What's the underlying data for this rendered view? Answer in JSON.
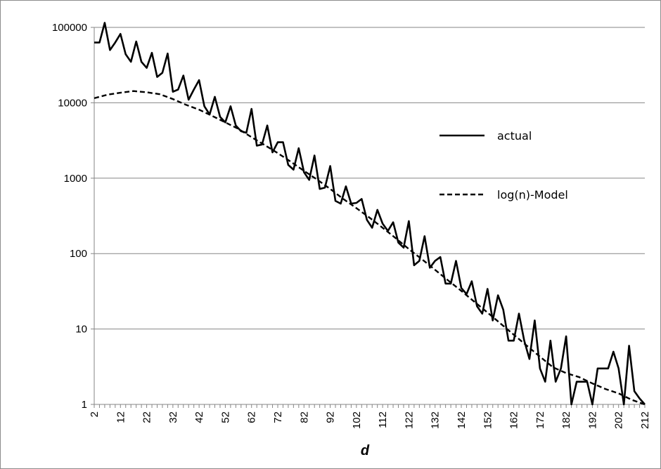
{
  "chart_data": {
    "type": "line",
    "title": "",
    "xlabel": "d",
    "ylabel": "",
    "y_scale": "log",
    "ylim": [
      1,
      100000
    ],
    "xlim": [
      2,
      212
    ],
    "grid": "horizontal major gridlines",
    "legend_position": "right",
    "y_ticks": [
      {
        "value": 1,
        "label": "1"
      },
      {
        "value": 10,
        "label": "10"
      },
      {
        "value": 100,
        "label": "100"
      },
      {
        "value": 1000,
        "label": "1000"
      },
      {
        "value": 10000,
        "label": "10000"
      },
      {
        "value": 100000,
        "label": "100000"
      }
    ],
    "x_ticks": [
      {
        "value": 2,
        "label": "2"
      },
      {
        "value": 12,
        "label": "12"
      },
      {
        "value": 22,
        "label": "22"
      },
      {
        "value": 32,
        "label": "32"
      },
      {
        "value": 42,
        "label": "42"
      },
      {
        "value": 52,
        "label": "52"
      },
      {
        "value": 62,
        "label": "62"
      },
      {
        "value": 72,
        "label": "72"
      },
      {
        "value": 82,
        "label": "82"
      },
      {
        "value": 92,
        "label": "92"
      },
      {
        "value": 102,
        "label": "102"
      },
      {
        "value": 112,
        "label": "112"
      },
      {
        "value": 122,
        "label": "122"
      },
      {
        "value": 132,
        "label": "132"
      },
      {
        "value": 142,
        "label": "142"
      },
      {
        "value": 152,
        "label": "152"
      },
      {
        "value": 162,
        "label": "162"
      },
      {
        "value": 172,
        "label": "172"
      },
      {
        "value": 182,
        "label": "182"
      },
      {
        "value": 192,
        "label": "192"
      },
      {
        "value": 202,
        "label": "202"
      },
      {
        "value": 212,
        "label": "212"
      }
    ],
    "series": [
      {
        "name": "actual",
        "style": "solid",
        "color": "#000000",
        "x": [
          2,
          4,
          6,
          8,
          10,
          12,
          14,
          16,
          18,
          20,
          22,
          24,
          26,
          28,
          30,
          32,
          34,
          36,
          38,
          40,
          42,
          44,
          46,
          48,
          50,
          52,
          54,
          56,
          58,
          60,
          62,
          64,
          66,
          68,
          70,
          72,
          74,
          76,
          78,
          80,
          82,
          84,
          86,
          88,
          90,
          92,
          94,
          96,
          98,
          100,
          102,
          104,
          106,
          108,
          110,
          112,
          114,
          116,
          118,
          120,
          122,
          124,
          126,
          128,
          130,
          132,
          134,
          136,
          138,
          140,
          142,
          144,
          146,
          148,
          150,
          152,
          154,
          156,
          158,
          160,
          162,
          164,
          166,
          168,
          170,
          172,
          174,
          176,
          178,
          180,
          182,
          184,
          186,
          188,
          190,
          192,
          194,
          196,
          198,
          200,
          202,
          204,
          206,
          208,
          210,
          212
        ],
        "y": [
          63000,
          63000,
          115000,
          50000,
          63000,
          82000,
          44000,
          35000,
          65000,
          35000,
          29000,
          46000,
          22000,
          25000,
          45000,
          14000,
          15000,
          23000,
          11000,
          15000,
          20000,
          9000,
          7000,
          12000,
          6500,
          5500,
          9000,
          5000,
          4200,
          4000,
          8300,
          2700,
          2800,
          5000,
          2200,
          3000,
          3000,
          1500,
          1300,
          2500,
          1200,
          950,
          2000,
          720,
          750,
          1450,
          500,
          460,
          780,
          460,
          470,
          530,
          280,
          220,
          380,
          250,
          200,
          260,
          140,
          120,
          270,
          70,
          80,
          170,
          65,
          80,
          90,
          40,
          40,
          80,
          35,
          29,
          43,
          20,
          16,
          34,
          13,
          28,
          18,
          7,
          7,
          16,
          7,
          4,
          13,
          3,
          2,
          7,
          2,
          3,
          8,
          1,
          2,
          2,
          2,
          1,
          3,
          3,
          3,
          5,
          3,
          1,
          6,
          1.5,
          1.2,
          1
        ]
      },
      {
        "name": "log(n)-Model",
        "style": "dashed",
        "color": "#000000",
        "x": [
          2,
          7,
          12,
          17,
          22,
          27,
          32,
          37,
          42,
          47,
          52,
          57,
          62,
          67,
          72,
          77,
          82,
          87,
          92,
          97,
          102,
          107,
          112,
          117,
          122,
          127,
          132,
          137,
          142,
          147,
          152,
          157,
          162,
          167,
          172,
          177,
          182,
          187,
          192,
          197,
          202,
          207,
          212
        ],
        "y": [
          11500,
          12800,
          13600,
          14300,
          13800,
          13000,
          11200,
          9400,
          8100,
          6700,
          5500,
          4500,
          3500,
          2750,
          2150,
          1650,
          1250,
          960,
          720,
          530,
          400,
          300,
          220,
          160,
          115,
          84,
          61,
          44,
          32,
          23,
          16.5,
          11.8,
          8.4,
          6,
          4.3,
          3.1,
          2.6,
          2.3,
          1.9,
          1.6,
          1.4,
          1.15,
          1
        ]
      }
    ]
  }
}
